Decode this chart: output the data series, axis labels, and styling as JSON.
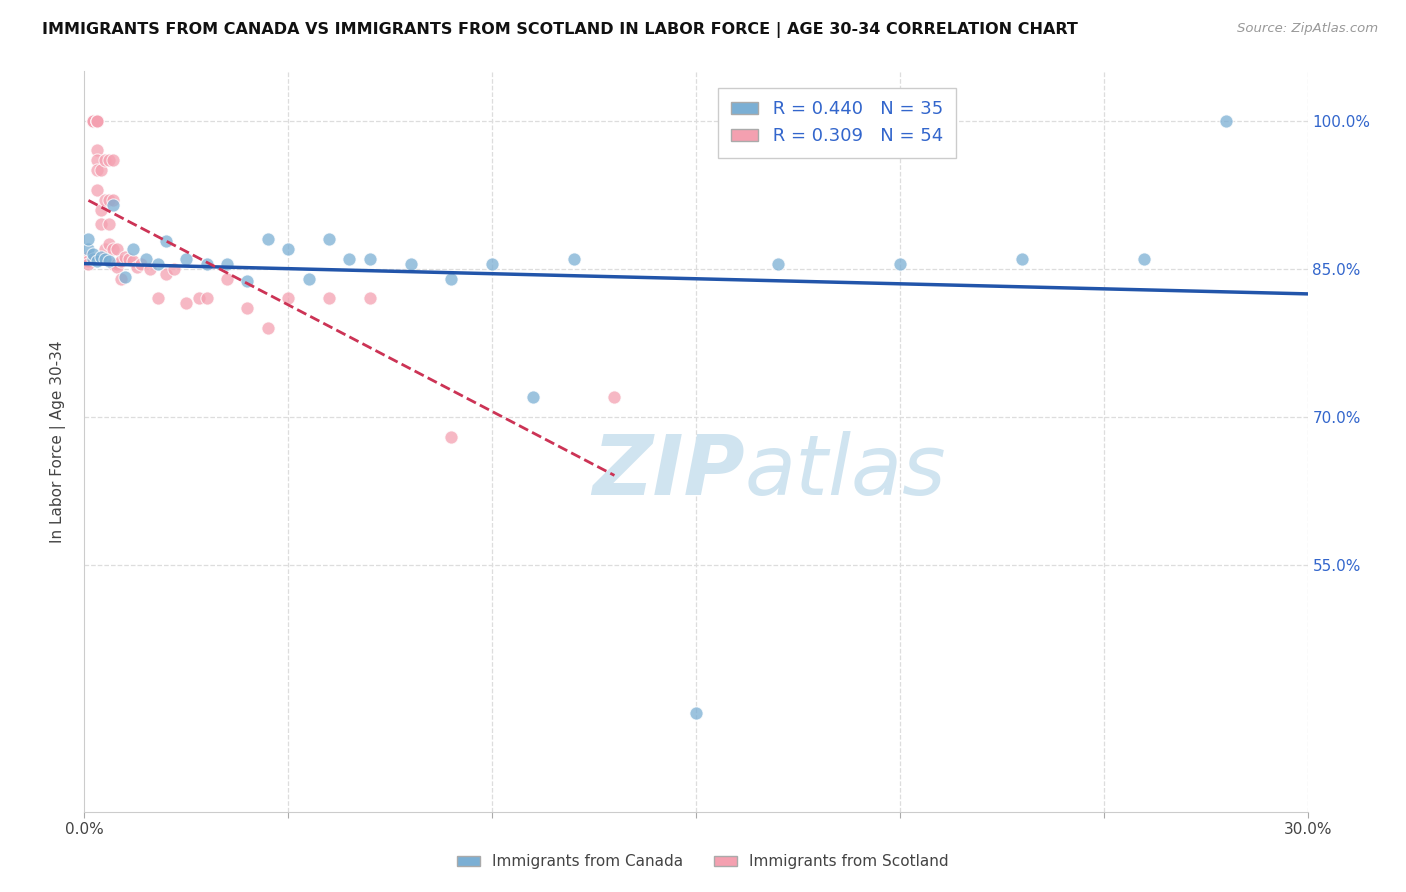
{
  "title": "IMMIGRANTS FROM CANADA VS IMMIGRANTS FROM SCOTLAND IN LABOR FORCE | AGE 30-34 CORRELATION CHART",
  "source": "Source: ZipAtlas.com",
  "ylabel": "In Labor Force | Age 30-34",
  "xlim": [
    0.0,
    0.3
  ],
  "ylim": [
    0.3,
    1.05
  ],
  "canada_R": 0.44,
  "canada_N": 35,
  "scotland_R": 0.309,
  "scotland_N": 54,
  "canada_color": "#7BAFD4",
  "scotland_color": "#F4A0B0",
  "canada_line_color": "#2255AA",
  "scotland_line_color": "#CC3355",
  "watermark_color": "#D0E4F0",
  "canada_x": [
    0.001,
    0.001,
    0.002,
    0.002,
    0.003,
    0.004,
    0.005,
    0.006,
    0.007,
    0.01,
    0.012,
    0.015,
    0.018,
    0.02,
    0.025,
    0.03,
    0.035,
    0.04,
    0.045,
    0.05,
    0.055,
    0.06,
    0.065,
    0.07,
    0.08,
    0.09,
    0.1,
    0.11,
    0.12,
    0.15,
    0.17,
    0.2,
    0.23,
    0.26,
    0.28
  ],
  "canada_y": [
    0.87,
    0.88,
    0.86,
    0.865,
    0.858,
    0.862,
    0.86,
    0.858,
    0.915,
    0.842,
    0.87,
    0.86,
    0.855,
    0.878,
    0.86,
    0.855,
    0.855,
    0.838,
    0.88,
    0.87,
    0.84,
    0.88,
    0.86,
    0.86,
    0.855,
    0.84,
    0.855,
    0.72,
    0.86,
    0.4,
    0.855,
    0.855,
    0.86,
    0.86,
    1.0
  ],
  "scotland_x": [
    0.001,
    0.001,
    0.001,
    0.002,
    0.002,
    0.002,
    0.002,
    0.002,
    0.003,
    0.003,
    0.003,
    0.003,
    0.003,
    0.003,
    0.003,
    0.004,
    0.004,
    0.004,
    0.005,
    0.005,
    0.005,
    0.006,
    0.006,
    0.006,
    0.006,
    0.007,
    0.007,
    0.007,
    0.007,
    0.008,
    0.008,
    0.008,
    0.009,
    0.009,
    0.01,
    0.011,
    0.012,
    0.013,
    0.014,
    0.016,
    0.018,
    0.02,
    0.022,
    0.025,
    0.028,
    0.03,
    0.035,
    0.04,
    0.045,
    0.05,
    0.06,
    0.07,
    0.09,
    0.13
  ],
  "scotland_y": [
    0.862,
    0.858,
    0.855,
    1.0,
    1.0,
    1.0,
    1.0,
    1.0,
    1.0,
    1.0,
    1.0,
    0.97,
    0.96,
    0.95,
    0.93,
    0.95,
    0.91,
    0.895,
    0.96,
    0.92,
    0.87,
    0.96,
    0.92,
    0.895,
    0.875,
    0.96,
    0.92,
    0.87,
    0.855,
    0.87,
    0.855,
    0.852,
    0.858,
    0.84,
    0.862,
    0.86,
    0.858,
    0.852,
    0.855,
    0.85,
    0.82,
    0.845,
    0.85,
    0.815,
    0.82,
    0.82,
    0.84,
    0.81,
    0.79,
    0.82,
    0.82,
    0.82,
    0.68,
    0.72
  ]
}
